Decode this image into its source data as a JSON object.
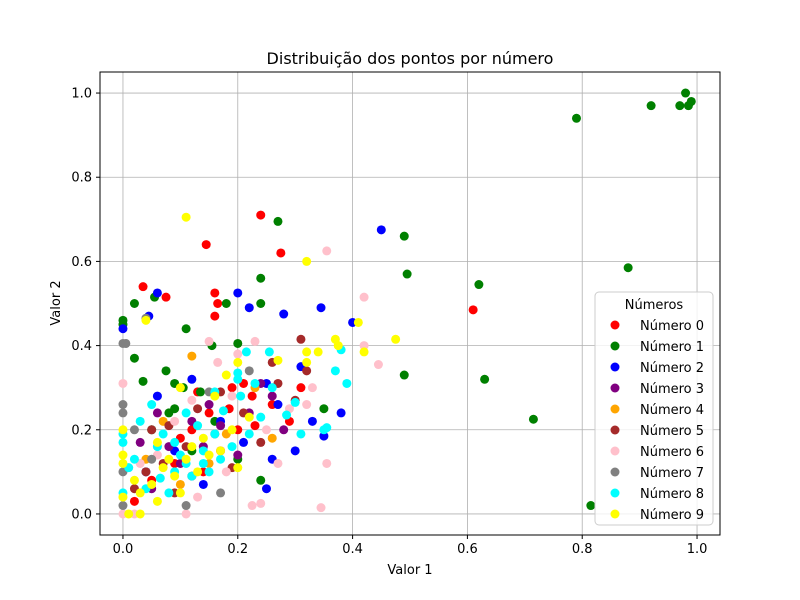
{
  "chart_data": {
    "type": "scatter",
    "title": "Distribuição dos pontos por número",
    "xlabel": "Valor 1",
    "ylabel": "Valor 2",
    "xlim": [
      -0.04,
      1.04
    ],
    "ylim": [
      -0.05,
      1.05
    ],
    "xticks": [
      "0.0",
      "0.2",
      "0.4",
      "0.6",
      "0.8",
      "1.0"
    ],
    "yticks": [
      "0.0",
      "0.2",
      "0.4",
      "0.6",
      "0.8",
      "1.0"
    ],
    "grid": true,
    "legend": {
      "title": "Números",
      "placement": "lower-right"
    },
    "series": [
      {
        "name": "Número 0",
        "color": "#ff0000",
        "points": [
          [
            0.24,
            0.71
          ],
          [
            0.145,
            0.64
          ],
          [
            0.275,
            0.62
          ],
          [
            0.16,
            0.525
          ],
          [
            0.035,
            0.54
          ],
          [
            0.165,
            0.5
          ],
          [
            0.075,
            0.515
          ],
          [
            0.16,
            0.47
          ],
          [
            0.61,
            0.485
          ],
          [
            0.13,
            0.29
          ],
          [
            0.19,
            0.3
          ],
          [
            0.225,
            0.28
          ],
          [
            0.185,
            0.25
          ],
          [
            0.15,
            0.24
          ],
          [
            0.2,
            0.2
          ],
          [
            0.1,
            0.18
          ],
          [
            0.31,
            0.3
          ],
          [
            0.26,
            0.26
          ],
          [
            0.09,
            0.12
          ],
          [
            0.05,
            0.08
          ],
          [
            0.02,
            0.03
          ],
          [
            0.17,
            0.15
          ],
          [
            0.29,
            0.22
          ],
          [
            0.23,
            0.21
          ],
          [
            0.14,
            0.1
          ],
          [
            0.21,
            0.31
          ],
          [
            0.12,
            0.2
          ]
        ]
      },
      {
        "name": "Número 1",
        "color": "#008000",
        "points": [
          [
            0.98,
            1.0
          ],
          [
            0.99,
            0.98
          ],
          [
            0.92,
            0.97
          ],
          [
            0.97,
            0.97
          ],
          [
            0.985,
            0.97
          ],
          [
            0.79,
            0.94
          ],
          [
            0.88,
            0.585
          ],
          [
            0.62,
            0.545
          ],
          [
            0.49,
            0.66
          ],
          [
            0.495,
            0.57
          ],
          [
            0.27,
            0.695
          ],
          [
            0.24,
            0.56
          ],
          [
            0.63,
            0.32
          ],
          [
            0.715,
            0.225
          ],
          [
            0.49,
            0.33
          ],
          [
            0.815,
            0.02
          ],
          [
            0.0,
            0.46
          ],
          [
            0.0,
            0.45
          ],
          [
            0.02,
            0.5
          ],
          [
            0.055,
            0.515
          ],
          [
            0.11,
            0.44
          ],
          [
            0.2,
            0.405
          ],
          [
            0.155,
            0.4
          ],
          [
            0.075,
            0.34
          ],
          [
            0.02,
            0.37
          ],
          [
            0.035,
            0.315
          ],
          [
            0.09,
            0.31
          ],
          [
            0.105,
            0.3
          ],
          [
            0.135,
            0.29
          ],
          [
            0.35,
            0.25
          ],
          [
            0.18,
            0.5
          ],
          [
            0.24,
            0.5
          ],
          [
            0.08,
            0.24
          ],
          [
            0.12,
            0.15
          ],
          [
            0.05,
            0.2
          ],
          [
            0.09,
            0.25
          ],
          [
            0.16,
            0.22
          ],
          [
            0.24,
            0.08
          ],
          [
            0.2,
            0.13
          ]
        ]
      },
      {
        "name": "Número 2",
        "color": "#0000ff",
        "points": [
          [
            0.45,
            0.675
          ],
          [
            0.4,
            0.455
          ],
          [
            0.345,
            0.49
          ],
          [
            0.2,
            0.525
          ],
          [
            0.06,
            0.525
          ],
          [
            0.045,
            0.47
          ],
          [
            0.0,
            0.44
          ],
          [
            0.28,
            0.475
          ],
          [
            0.22,
            0.49
          ],
          [
            0.38,
            0.24
          ],
          [
            0.35,
            0.185
          ],
          [
            0.3,
            0.15
          ],
          [
            0.25,
            0.06
          ],
          [
            0.27,
            0.26
          ],
          [
            0.25,
            0.31
          ],
          [
            0.31,
            0.35
          ],
          [
            0.12,
            0.32
          ],
          [
            0.17,
            0.22
          ],
          [
            0.09,
            0.15
          ],
          [
            0.06,
            0.28
          ],
          [
            0.21,
            0.17
          ],
          [
            0.26,
            0.13
          ],
          [
            0.14,
            0.07
          ],
          [
            0.33,
            0.22
          ],
          [
            0.04,
            0.1
          ]
        ]
      },
      {
        "name": "Número 3",
        "color": "#800080",
        "points": [
          [
            0.24,
            0.31
          ],
          [
            0.22,
            0.24
          ],
          [
            0.17,
            0.21
          ],
          [
            0.12,
            0.22
          ],
          [
            0.08,
            0.16
          ],
          [
            0.06,
            0.24
          ],
          [
            0.05,
            0.06
          ],
          [
            0.2,
            0.14
          ],
          [
            0.15,
            0.26
          ],
          [
            0.28,
            0.2
          ],
          [
            0.1,
            0.12
          ],
          [
            0.03,
            0.17
          ],
          [
            0.26,
            0.28
          ],
          [
            0.14,
            0.16
          ]
        ]
      },
      {
        "name": "Número 4",
        "color": "#ffa500",
        "points": [
          [
            0.12,
            0.375
          ],
          [
            0.07,
            0.22
          ],
          [
            0.18,
            0.19
          ],
          [
            0.23,
            0.3
          ],
          [
            0.04,
            0.13
          ],
          [
            0.26,
            0.18
          ],
          [
            0.1,
            0.07
          ],
          [
            0.15,
            0.12
          ]
        ]
      },
      {
        "name": "Número 5",
        "color": "#a52a2a",
        "points": [
          [
            0.31,
            0.415
          ],
          [
            0.26,
            0.36
          ],
          [
            0.32,
            0.34
          ],
          [
            0.27,
            0.31
          ],
          [
            0.21,
            0.24
          ],
          [
            0.16,
            0.19
          ],
          [
            0.11,
            0.16
          ],
          [
            0.07,
            0.12
          ],
          [
            0.04,
            0.1
          ],
          [
            0.02,
            0.06
          ],
          [
            0.09,
            0.05
          ],
          [
            0.13,
            0.25
          ],
          [
            0.19,
            0.11
          ],
          [
            0.24,
            0.17
          ],
          [
            0.3,
            0.27
          ],
          [
            0.05,
            0.2
          ],
          [
            0.08,
            0.21
          ],
          [
            0.17,
            0.29
          ],
          [
            0.12,
            0.09
          ]
        ]
      },
      {
        "name": "Número 6",
        "color": "#ffc0cb",
        "points": [
          [
            0.355,
            0.625
          ],
          [
            0.42,
            0.515
          ],
          [
            0.445,
            0.355
          ],
          [
            0.42,
            0.4
          ],
          [
            0.33,
            0.3
          ],
          [
            0.32,
            0.26
          ],
          [
            0.355,
            0.12
          ],
          [
            0.345,
            0.015
          ],
          [
            0.24,
            0.025
          ],
          [
            0.225,
            0.02
          ],
          [
            0.27,
            0.12
          ],
          [
            0.23,
            0.41
          ],
          [
            0.15,
            0.41
          ],
          [
            0.165,
            0.36
          ],
          [
            0.19,
            0.28
          ],
          [
            0.2,
            0.38
          ],
          [
            0.12,
            0.27
          ],
          [
            0.09,
            0.22
          ],
          [
            0.06,
            0.14
          ],
          [
            0.03,
            0.12
          ],
          [
            0.0,
            0.31
          ],
          [
            0.0,
            0.0
          ],
          [
            0.02,
            0.0
          ],
          [
            0.11,
            0.0
          ],
          [
            0.13,
            0.04
          ],
          [
            0.18,
            0.1
          ],
          [
            0.25,
            0.2
          ],
          [
            0.29,
            0.25
          ]
        ]
      },
      {
        "name": "Número 7",
        "color": "#808080",
        "points": [
          [
            0.0,
            0.405
          ],
          [
            0.005,
            0.405
          ],
          [
            0.04,
            0.465
          ],
          [
            0.0,
            0.26
          ],
          [
            0.0,
            0.24
          ],
          [
            0.22,
            0.34
          ],
          [
            0.17,
            0.05
          ],
          [
            0.0,
            0.1
          ],
          [
            0.02,
            0.2
          ],
          [
            0.11,
            0.02
          ],
          [
            0.0,
            0.02
          ],
          [
            0.05,
            0.13
          ],
          [
            0.15,
            0.29
          ]
        ]
      },
      {
        "name": "Número 8",
        "color": "#00ffff",
        "points": [
          [
            0.38,
            0.39
          ],
          [
            0.37,
            0.34
          ],
          [
            0.39,
            0.31
          ],
          [
            0.355,
            0.205
          ],
          [
            0.35,
            0.2
          ],
          [
            0.31,
            0.19
          ],
          [
            0.285,
            0.235
          ],
          [
            0.3,
            0.265
          ],
          [
            0.255,
            0.385
          ],
          [
            0.215,
            0.385
          ],
          [
            0.2,
            0.335
          ],
          [
            0.23,
            0.31
          ],
          [
            0.205,
            0.28
          ],
          [
            0.175,
            0.245
          ],
          [
            0.16,
            0.19
          ],
          [
            0.14,
            0.15
          ],
          [
            0.11,
            0.12
          ],
          [
            0.09,
            0.1
          ],
          [
            0.065,
            0.085
          ],
          [
            0.04,
            0.06
          ],
          [
            0.02,
            0.13
          ],
          [
            0.0,
            0.19
          ],
          [
            0.0,
            0.17
          ],
          [
            0.03,
            0.22
          ],
          [
            0.05,
            0.26
          ],
          [
            0.06,
            0.16
          ],
          [
            0.08,
            0.05
          ],
          [
            0.1,
            0.14
          ],
          [
            0.12,
            0.09
          ],
          [
            0.13,
            0.21
          ],
          [
            0.15,
            0.1
          ],
          [
            0.17,
            0.13
          ],
          [
            0.19,
            0.16
          ],
          [
            0.22,
            0.19
          ],
          [
            0.24,
            0.23
          ],
          [
            0.26,
            0.3
          ],
          [
            0.0,
            0.05
          ],
          [
            0.01,
            0.11
          ],
          [
            0.07,
            0.19
          ],
          [
            0.11,
            0.24
          ],
          [
            0.16,
            0.29
          ],
          [
            0.2,
            0.32
          ],
          [
            0.14,
            0.12
          ],
          [
            0.09,
            0.17
          ]
        ]
      },
      {
        "name": "Número 9",
        "color": "#ffff00",
        "points": [
          [
            0.11,
            0.705
          ],
          [
            0.32,
            0.6
          ],
          [
            0.04,
            0.46
          ],
          [
            0.41,
            0.455
          ],
          [
            0.42,
            0.385
          ],
          [
            0.475,
            0.415
          ],
          [
            0.37,
            0.415
          ],
          [
            0.375,
            0.4
          ],
          [
            0.34,
            0.385
          ],
          [
            0.32,
            0.385
          ],
          [
            0.32,
            0.36
          ],
          [
            0.27,
            0.365
          ],
          [
            0.2,
            0.36
          ],
          [
            0.18,
            0.33
          ],
          [
            0.1,
            0.3
          ],
          [
            0.16,
            0.28
          ],
          [
            0.19,
            0.2
          ],
          [
            0.17,
            0.15
          ],
          [
            0.14,
            0.18
          ],
          [
            0.13,
            0.1
          ],
          [
            0.11,
            0.13
          ],
          [
            0.09,
            0.09
          ],
          [
            0.07,
            0.11
          ],
          [
            0.05,
            0.07
          ],
          [
            0.03,
            0.05
          ],
          [
            0.0,
            0.12
          ],
          [
            0.0,
            0.14
          ],
          [
            0.01,
            0.0
          ],
          [
            0.03,
            0.0
          ],
          [
            0.0,
            0.04
          ],
          [
            0.06,
            0.17
          ],
          [
            0.08,
            0.13
          ],
          [
            0.12,
            0.16
          ],
          [
            0.15,
            0.14
          ],
          [
            0.1,
            0.05
          ],
          [
            0.06,
            0.03
          ],
          [
            0.0,
            0.2
          ],
          [
            0.02,
            0.08
          ],
          [
            0.2,
            0.11
          ],
          [
            0.22,
            0.23
          ]
        ]
      }
    ]
  }
}
